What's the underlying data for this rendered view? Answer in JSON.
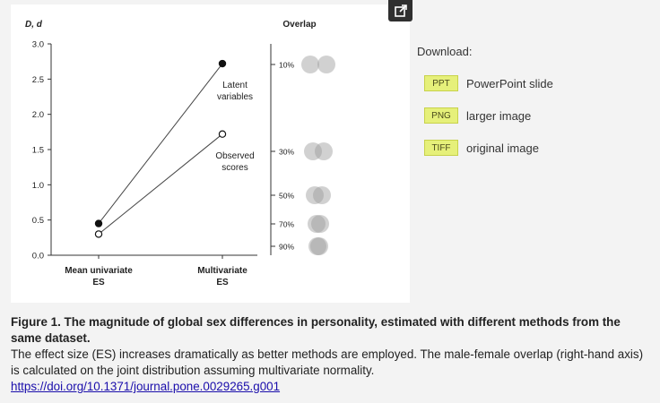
{
  "figure": {
    "y_axis_title": "D, d",
    "overlap_title": "Overlap",
    "y_ticks": [
      "3.0",
      "2.5",
      "2.0",
      "1.5",
      "1.0",
      "0.5",
      "0.0"
    ],
    "x_labels": [
      [
        "Mean univariate",
        "ES"
      ],
      [
        "Multivariate",
        "ES"
      ]
    ],
    "series_labels": {
      "latent": [
        "Latent",
        "variables"
      ],
      "observed": [
        "Observed",
        "scores"
      ]
    },
    "overlap_ticks": [
      "10%",
      "30%",
      "50%",
      "70%",
      "90%"
    ]
  },
  "chart_data": {
    "type": "line",
    "categories": [
      "Mean univariate ES",
      "Multivariate ES"
    ],
    "series": [
      {
        "name": "Latent variables",
        "values": [
          0.45,
          2.72
        ]
      },
      {
        "name": "Observed scores",
        "values": [
          0.3,
          1.72
        ]
      }
    ],
    "ylabel": "D, d",
    "ylim": [
      0,
      3.0
    ],
    "right_axis": {
      "label": "Overlap",
      "ticks": [
        "10%",
        "30%",
        "50%",
        "70%",
        "90%"
      ]
    },
    "grid": false
  },
  "download": {
    "title": "Download:",
    "items": [
      {
        "badge": "PPT",
        "label": "PowerPoint slide"
      },
      {
        "badge": "PNG",
        "label": "larger image"
      },
      {
        "badge": "TIFF",
        "label": "original image"
      }
    ]
  },
  "caption": {
    "title": "Figure 1. The magnitude of global sex differences in personality, estimated with different methods from the same dataset.",
    "body": "The effect size (ES) increases dramatically as better methods are employed. The male-female overlap (right-hand axis) is calculated on the joint distribution assuming multivariate normality.",
    "link": "https://doi.org/10.1371/journal.pone.0029265.g001"
  },
  "colors": {
    "accent_badge": "#e6f07a",
    "link": "#1a0dab"
  },
  "icons": {
    "expand": "external-link-icon"
  }
}
